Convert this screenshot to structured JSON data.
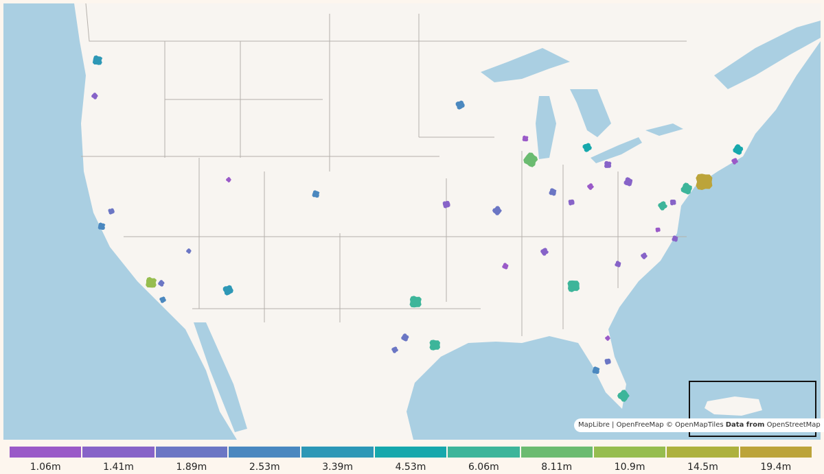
{
  "legend": {
    "items": [
      {
        "label": "1.06m",
        "color": "#9a5ac8"
      },
      {
        "label": "1.41m",
        "color": "#8763c8"
      },
      {
        "label": "1.89m",
        "color": "#6b76c4"
      },
      {
        "label": "2.53m",
        "color": "#4b88bf"
      },
      {
        "label": "3.39m",
        "color": "#2e98b6"
      },
      {
        "label": "4.53m",
        "color": "#17a8ac"
      },
      {
        "label": "6.06m",
        "color": "#3db59a"
      },
      {
        "label": "8.11m",
        "color": "#6bbb70"
      },
      {
        "label": "10.9m",
        "color": "#96bd4f"
      },
      {
        "label": "14.5m",
        "color": "#adb13e"
      },
      {
        "label": "19.4m",
        "color": "#bca43a"
      }
    ]
  },
  "attribution": {
    "maplibre": "MapLibre",
    "separator": "|",
    "openfreemap": "OpenFreeMap",
    "openmaptiles": "© OpenMapTiles",
    "data_from": "Data from",
    "osm": "OpenStreetMap",
    "info_icon": "i"
  }
}
